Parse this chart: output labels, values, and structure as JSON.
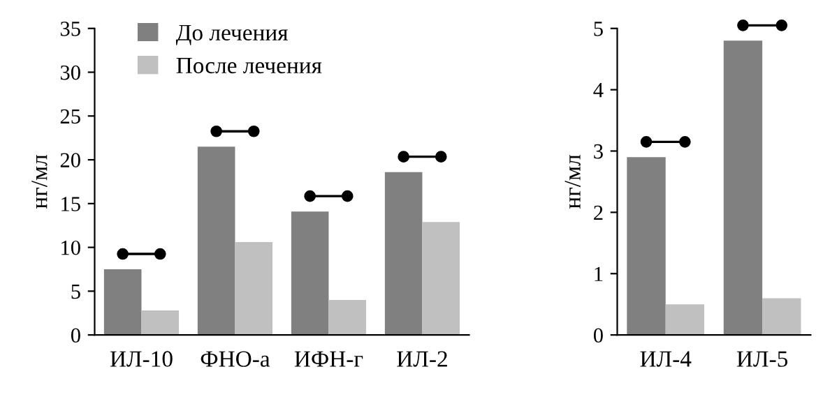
{
  "chart_data": [
    {
      "type": "bar",
      "ylabel": "нг/мл",
      "categories": [
        "ИЛ-10",
        "ФНО-a",
        "ИФН-г",
        "ИЛ-2"
      ],
      "series": [
        {
          "name": "До лечения",
          "color": "#808080",
          "values": [
            7.5,
            21.5,
            14.1,
            18.6
          ]
        },
        {
          "name": "После лечения",
          "color": "#c0c0c0",
          "values": [
            2.8,
            10.6,
            4.0,
            12.9
          ]
        }
      ],
      "ylim": [
        0,
        35
      ],
      "yticks": [
        0,
        5,
        10,
        15,
        20,
        25,
        30,
        35
      ],
      "grid": false,
      "legend": "top left"
    },
    {
      "type": "bar",
      "ylabel": "нг/мл",
      "categories": [
        "ИЛ-4",
        "ИЛ-5"
      ],
      "series": [
        {
          "color": "#808080",
          "values": [
            2.9,
            4.8
          ]
        },
        {
          "color": "#c0c0c0",
          "values": [
            0.5,
            0.6
          ]
        }
      ],
      "ylim": [
        0,
        5
      ],
      "yticks": [
        0,
        1,
        2,
        3,
        4,
        5
      ],
      "grid": false,
      "legend": false
    }
  ]
}
